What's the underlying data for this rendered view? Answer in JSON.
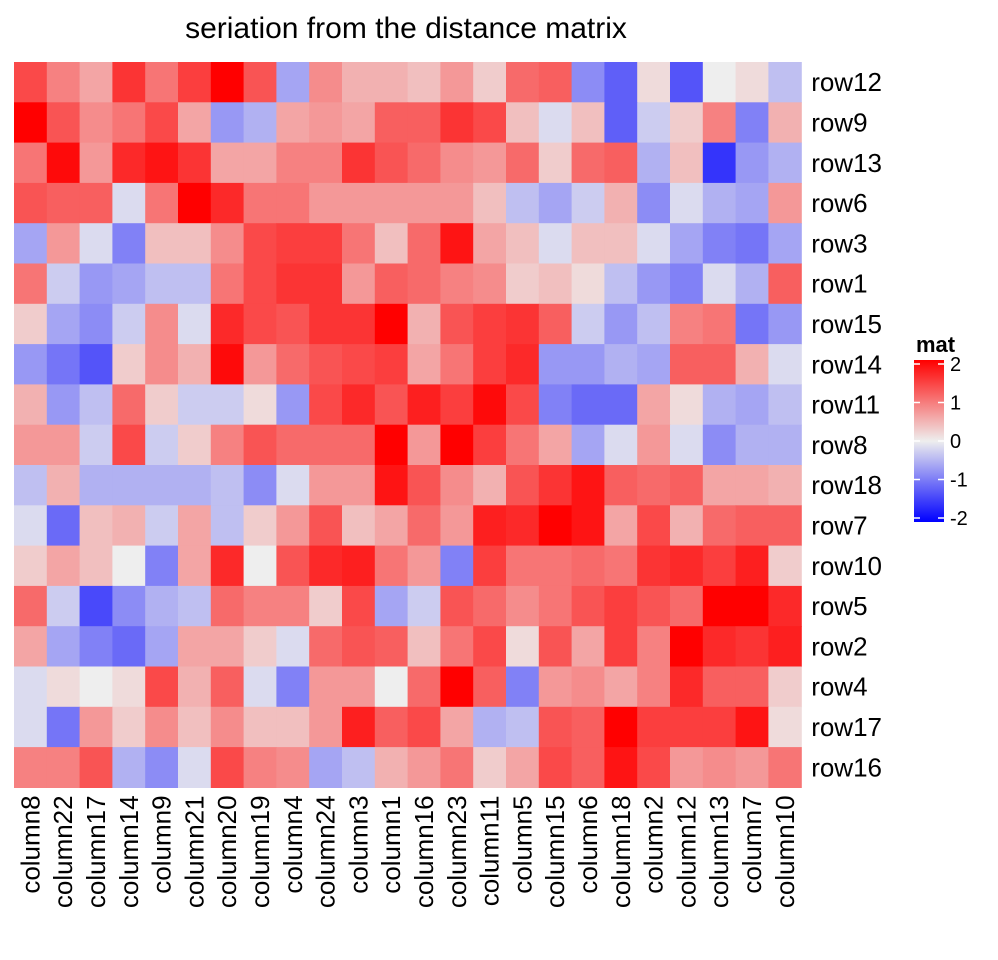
{
  "chart_data": {
    "type": "heatmap",
    "title": "seriation from the distance matrix",
    "rows": [
      "row12",
      "row9",
      "row13",
      "row6",
      "row3",
      "row1",
      "row15",
      "row14",
      "row11",
      "row8",
      "row18",
      "row7",
      "row10",
      "row5",
      "row2",
      "row4",
      "row17",
      "row16"
    ],
    "columns": [
      "column8",
      "column22",
      "column17",
      "column14",
      "column9",
      "column21",
      "column20",
      "column19",
      "column4",
      "column24",
      "column3",
      "column1",
      "column16",
      "column23",
      "column11",
      "column5",
      "column15",
      "column6",
      "column18",
      "column2",
      "column12",
      "column13",
      "column7",
      "column10"
    ],
    "values": [
      [
        1.3,
        0.8,
        0.5,
        1.5,
        0.9,
        1.4,
        2.0,
        1.2,
        -0.5,
        0.7,
        0.4,
        0.4,
        0.3,
        0.6,
        0.2,
        1.0,
        1.1,
        -0.7,
        -1.1,
        0.1,
        -1.2,
        0.0,
        0.1,
        -0.3
      ],
      [
        2.2,
        1.2,
        0.7,
        0.9,
        1.3,
        0.5,
        -0.6,
        -0.4,
        0.5,
        0.6,
        0.5,
        1.1,
        1.1,
        1.5,
        1.3,
        0.3,
        -0.1,
        0.3,
        -1.1,
        -0.2,
        0.2,
        0.8,
        -0.8,
        0.4
      ],
      [
        0.9,
        1.9,
        0.6,
        1.6,
        1.8,
        1.5,
        0.5,
        0.5,
        0.8,
        0.8,
        1.5,
        1.2,
        1.0,
        0.7,
        0.6,
        1.0,
        0.2,
        1.0,
        1.1,
        -0.4,
        0.3,
        -1.5,
        -0.6,
        -0.4
      ],
      [
        1.2,
        1.1,
        1.1,
        -0.1,
        0.9,
        2.1,
        1.6,
        0.9,
        0.9,
        0.6,
        0.6,
        0.6,
        0.6,
        0.6,
        0.3,
        -0.3,
        -0.5,
        -0.2,
        0.4,
        -0.7,
        -0.1,
        -0.4,
        -0.5,
        0.6
      ],
      [
        -0.5,
        0.6,
        -0.1,
        -0.8,
        0.3,
        0.3,
        0.7,
        1.3,
        1.4,
        1.4,
        0.9,
        0.3,
        1.0,
        1.8,
        0.5,
        0.3,
        -0.1,
        0.3,
        0.3,
        -0.1,
        -0.5,
        -0.8,
        -0.9,
        -0.5
      ],
      [
        0.9,
        -0.2,
        -0.6,
        -0.5,
        -0.3,
        -0.3,
        0.9,
        1.3,
        1.5,
        1.5,
        0.6,
        1.1,
        1.0,
        0.8,
        0.7,
        0.2,
        0.3,
        0.1,
        -0.3,
        -0.6,
        -0.8,
        -0.1,
        -0.4,
        1.1
      ],
      [
        0.2,
        -0.5,
        -0.7,
        -0.2,
        0.7,
        -0.1,
        1.6,
        1.3,
        1.2,
        1.5,
        1.5,
        2.0,
        0.4,
        1.2,
        1.4,
        1.5,
        1.1,
        -0.2,
        -0.6,
        -0.3,
        0.8,
        0.9,
        -0.9,
        -0.6
      ],
      [
        -0.6,
        -0.9,
        -1.2,
        0.2,
        0.7,
        0.4,
        1.9,
        0.6,
        1.0,
        1.2,
        1.3,
        1.4,
        0.5,
        0.9,
        1.4,
        1.6,
        -0.6,
        -0.6,
        -0.4,
        -0.5,
        1.1,
        1.1,
        0.4,
        -0.1
      ],
      [
        0.4,
        -0.6,
        -0.3,
        1.0,
        0.2,
        -0.2,
        -0.2,
        0.1,
        -0.6,
        1.3,
        1.6,
        1.2,
        1.7,
        1.4,
        1.9,
        1.3,
        -0.8,
        -1.0,
        -1.0,
        0.5,
        0.1,
        -0.4,
        -0.5,
        -0.3
      ],
      [
        0.6,
        0.6,
        -0.2,
        1.3,
        -0.2,
        0.2,
        0.8,
        1.2,
        1.0,
        1.0,
        1.0,
        2.3,
        0.6,
        2.1,
        1.4,
        0.9,
        0.5,
        -0.5,
        -0.1,
        0.6,
        -0.1,
        -0.7,
        -0.4,
        -0.4
      ],
      [
        -0.3,
        0.4,
        -0.4,
        -0.4,
        -0.4,
        -0.4,
        -0.3,
        -0.7,
        -0.1,
        0.6,
        0.6,
        1.8,
        1.2,
        0.7,
        0.4,
        1.2,
        1.5,
        1.8,
        1.1,
        1.0,
        1.1,
        0.5,
        0.5,
        0.4
      ],
      [
        -0.1,
        -1.0,
        0.3,
        0.4,
        -0.2,
        0.5,
        -0.3,
        0.2,
        0.6,
        1.2,
        0.3,
        0.5,
        1.0,
        0.6,
        1.7,
        1.6,
        2.3,
        1.8,
        0.5,
        1.3,
        0.4,
        1.0,
        1.1,
        1.1
      ],
      [
        0.2,
        0.5,
        0.3,
        0.0,
        -0.8,
        0.5,
        1.6,
        0.0,
        1.2,
        1.6,
        1.7,
        0.9,
        0.6,
        -0.8,
        1.4,
        0.9,
        0.9,
        1.0,
        0.9,
        1.5,
        1.6,
        1.4,
        1.7,
        0.2
      ],
      [
        1.0,
        -0.2,
        -1.3,
        -0.7,
        -0.4,
        -0.3,
        1.0,
        0.8,
        0.8,
        0.2,
        1.3,
        -0.5,
        -0.2,
        1.2,
        1.0,
        0.7,
        0.9,
        1.2,
        1.4,
        1.2,
        1.0,
        2.2,
        2.2,
        1.6
      ],
      [
        0.5,
        -0.5,
        -0.8,
        -1.0,
        -0.5,
        0.5,
        0.5,
        0.2,
        -0.1,
        1.0,
        1.2,
        1.1,
        0.3,
        0.9,
        1.3,
        0.1,
        1.2,
        0.5,
        1.4,
        0.8,
        2.3,
        1.6,
        1.5,
        1.7
      ],
      [
        -0.1,
        0.1,
        0.0,
        0.1,
        1.3,
        0.4,
        1.1,
        -0.1,
        -0.8,
        0.6,
        0.6,
        0.0,
        1.0,
        2.0,
        1.1,
        -0.8,
        0.6,
        0.7,
        0.5,
        0.8,
        1.6,
        1.1,
        1.1,
        0.2
      ],
      [
        -0.1,
        -0.9,
        0.6,
        0.2,
        0.7,
        0.3,
        0.7,
        0.3,
        0.3,
        0.6,
        1.7,
        1.1,
        1.3,
        0.5,
        -0.4,
        -0.3,
        1.2,
        1.1,
        2.4,
        1.4,
        1.4,
        1.4,
        1.8,
        0.1
      ],
      [
        0.8,
        0.8,
        1.2,
        -0.4,
        -0.7,
        -0.1,
        1.3,
        0.8,
        0.7,
        -0.5,
        -0.3,
        0.4,
        0.6,
        0.9,
        0.2,
        0.5,
        1.3,
        1.1,
        1.8,
        1.3,
        0.6,
        0.7,
        0.6,
        0.9
      ]
    ],
    "legend": {
      "title": "mat",
      "ticks": [
        2,
        1,
        0,
        -1,
        -2
      ],
      "tick_labels": [
        "2",
        "1",
        "0",
        "-1",
        "-2"
      ],
      "placement": "right"
    },
    "color_scale": {
      "low": "#0000ff",
      "mid": "#ffffff",
      "high": "#ff0000",
      "domain": [
        -2,
        0,
        2
      ]
    },
    "xlabel": "",
    "ylabel": ""
  }
}
